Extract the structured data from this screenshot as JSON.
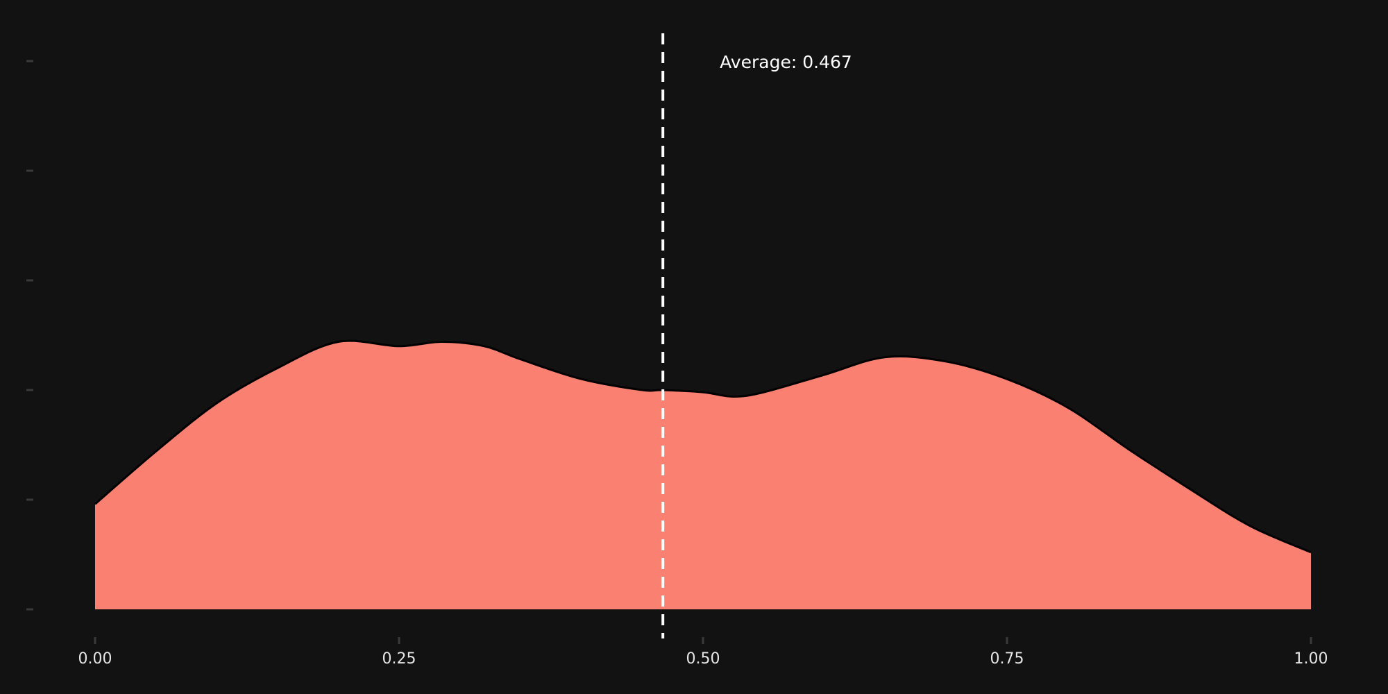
{
  "chart_data": {
    "type": "area",
    "title": "",
    "xlabel": "",
    "ylabel": "",
    "xlim": [
      0,
      1
    ],
    "ylim": [
      0,
      2.5
    ],
    "x_ticks": [
      0,
      0.25,
      0.5,
      0.75,
      1
    ],
    "x_tick_labels": [
      "0.00",
      "0.25",
      "0.50",
      "0.75",
      "1.00"
    ],
    "y_ticks": [
      0,
      0.5,
      1,
      1.5,
      2,
      2.5
    ],
    "y_tick_labels_visible": false,
    "grid": false,
    "legend": "none",
    "series": [
      {
        "x": [
          0,
          0.05,
          0.1,
          0.15,
          0.2,
          0.25,
          0.285,
          0.32,
          0.35,
          0.4,
          0.45,
          0.467,
          0.5,
          0.525,
          0.55,
          0.6,
          0.65,
          0.7,
          0.75,
          0.8,
          0.85,
          0.9,
          0.95,
          1.0
        ],
        "y": [
          0.48,
          0.72,
          0.94,
          1.1,
          1.22,
          1.2,
          1.22,
          1.2,
          1.14,
          1.05,
          1.0,
          1.0,
          0.99,
          0.97,
          0.99,
          1.07,
          1.15,
          1.13,
          1.05,
          0.92,
          0.73,
          0.55,
          0.38,
          0.26
        ],
        "fill": "#fa8072",
        "stroke": "#000000"
      }
    ],
    "reference_line": {
      "x": 0.467,
      "label": "Average: 0.467",
      "style": "dashed",
      "color": "#ffffff"
    }
  }
}
